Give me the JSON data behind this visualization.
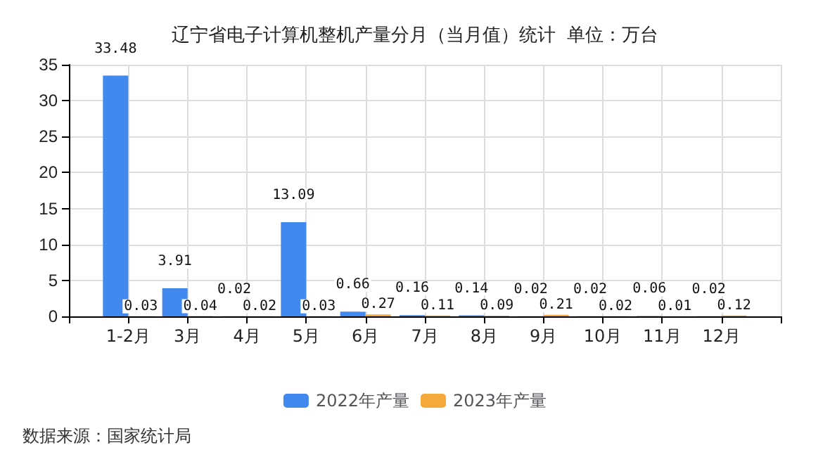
{
  "chart_data": {
    "type": "bar",
    "title": "辽宁省电子计算机整机产量分月（当月值）统计  单位：万台",
    "categories": [
      null,
      "1-2月",
      "3月",
      "4月",
      "5月",
      "6月",
      "7月",
      "8月",
      "9月",
      "10月",
      "11月",
      "12月",
      null
    ],
    "series": [
      {
        "name": "2022年产量",
        "color": "#4189ee",
        "values": [
          null,
          33.48,
          3.91,
          0.02,
          13.09,
          0.66,
          0.16,
          0.14,
          0.02,
          0.02,
          0.06,
          0.02,
          null
        ]
      },
      {
        "name": "2023年产量",
        "color": "#f6a93b",
        "values": [
          null,
          0.03,
          0.04,
          0.02,
          0.03,
          0.27,
          0.11,
          0.09,
          0.21,
          0.02,
          0.01,
          0.12,
          null
        ]
      }
    ],
    "ylim": [
      0,
      35
    ],
    "yticks": [
      0,
      5,
      10,
      15,
      20,
      25,
      30,
      35
    ],
    "grid": true,
    "legend": "bottom",
    "data_labels": true,
    "annotations": [
      "数据来源：国家统计局"
    ]
  }
}
